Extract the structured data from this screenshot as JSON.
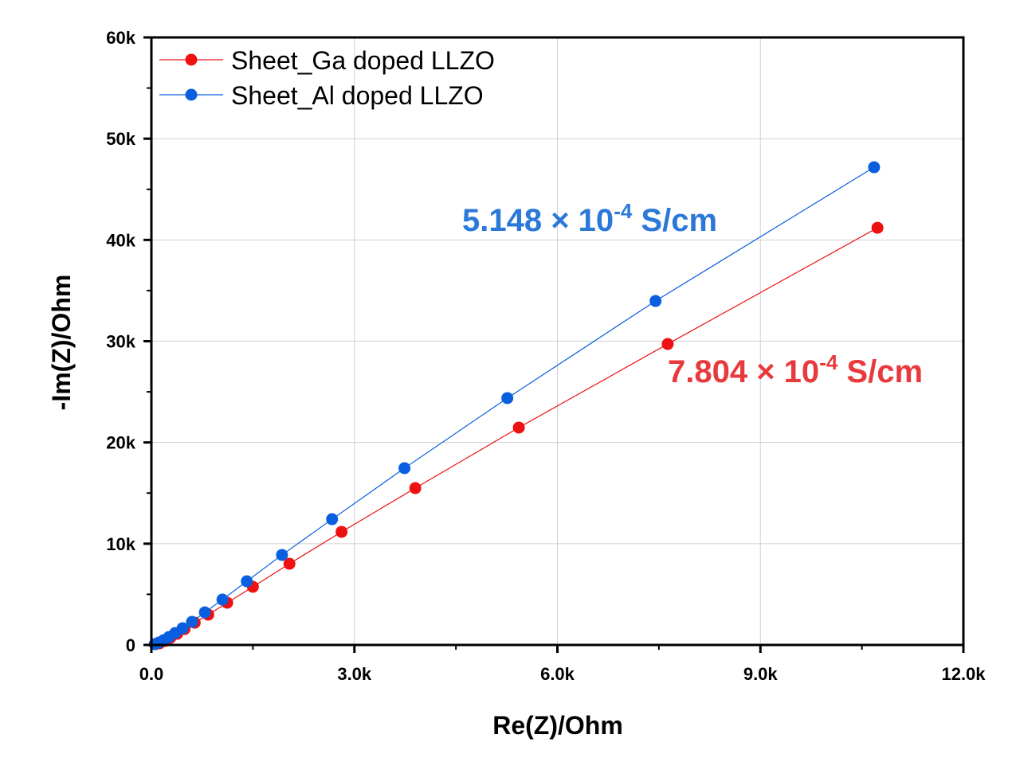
{
  "chart_data": {
    "type": "scatter",
    "xlabel": "Re(Z)/Ohm",
    "ylabel": "-Im(Z)/Ohm",
    "xlim": [
      0,
      12000
    ],
    "ylim": [
      0,
      60000
    ],
    "x_ticks": [
      0,
      3000,
      6000,
      9000,
      12000
    ],
    "x_tick_labels": [
      "0.0",
      "3.0k",
      "6.0k",
      "9.0k",
      "12.0k"
    ],
    "y_ticks": [
      0,
      10000,
      20000,
      30000,
      40000,
      50000,
      60000
    ],
    "y_tick_labels": [
      "0",
      "10k",
      "20k",
      "30k",
      "40k",
      "50k",
      "60k"
    ],
    "grid": true,
    "legend_position": "top-left",
    "series": [
      {
        "name": "Sheet_Ga doped LLZO",
        "color": "#ee1111",
        "x": [
          60,
          120,
          200,
          280,
          380,
          490,
          640,
          840,
          1120,
          1500,
          2040,
          2810,
          3900,
          5430,
          7630,
          10730
        ],
        "y": [
          80,
          160,
          390,
          710,
          1100,
          1570,
          2200,
          2990,
          4170,
          5740,
          8020,
          11170,
          15490,
          21470,
          29720,
          41200
        ]
      },
      {
        "name": "Sheet_Al doped LLZO",
        "color": "#0a5ee0",
        "x": [
          50,
          110,
          180,
          260,
          350,
          460,
          600,
          790,
          1050,
          1410,
          1930,
          2670,
          3740,
          5260,
          7450,
          10680
        ],
        "y": [
          80,
          240,
          470,
          790,
          1180,
          1650,
          2280,
          3220,
          4480,
          6290,
          8890,
          12420,
          17460,
          24380,
          33970,
          47180
        ]
      }
    ],
    "annotations": [
      {
        "mantissa": "5.148 × 10",
        "exponent": "-4",
        "unit": " S/cm",
        "color": "#2b78d8"
      },
      {
        "mantissa": "7.804 × 10",
        "exponent": "-4",
        "unit": " S/cm",
        "color": "#e8393c"
      }
    ]
  }
}
